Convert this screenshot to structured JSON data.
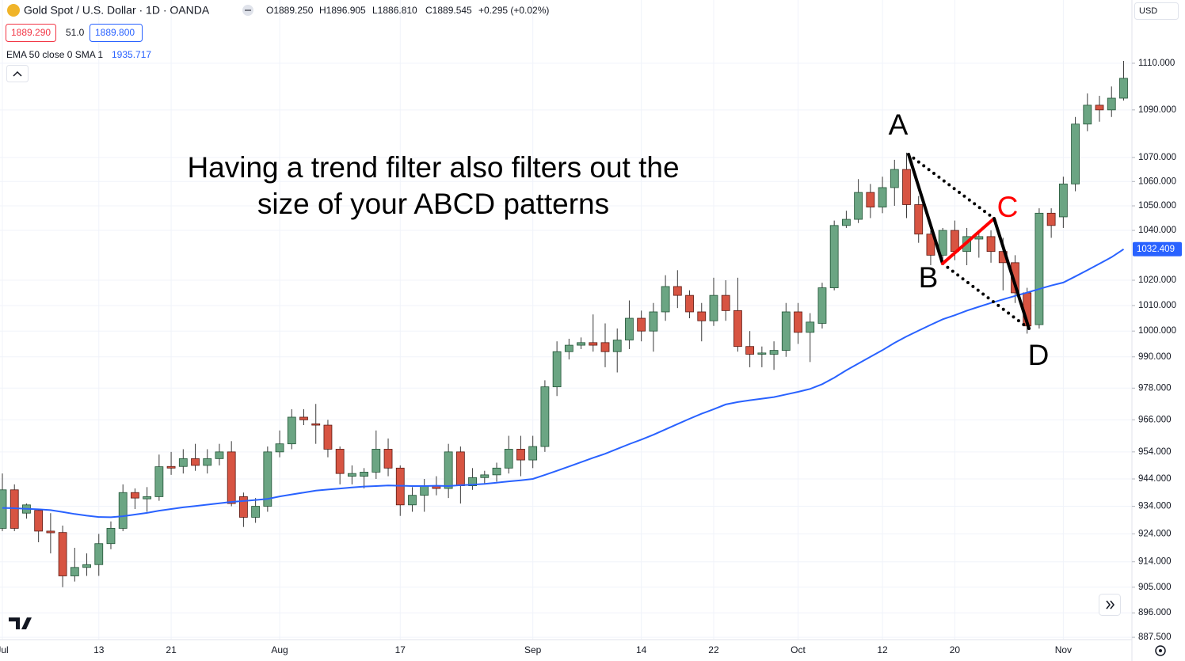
{
  "chart_data": {
    "type": "candlestick",
    "title": "Gold Spot / U.S. Dollar · 1D · OANDA",
    "header_values": [
      "O1889.250",
      "H1896.905",
      "L1886.810",
      "C1889.545",
      "+0.295 (+0.02%)"
    ],
    "quote": [
      "1889.290",
      "51.0",
      "1889.800"
    ],
    "indicator": "EMA 50 close 0 SMA 1",
    "indicator_value": "1935.717",
    "currency": "USD",
    "annotation_text": [
      "Having a trend filter also filters out the",
      "size of your ABCD patterns"
    ],
    "pattern_points": [
      "A",
      "B",
      "C",
      "D"
    ],
    "log_scale": true,
    "grid": true,
    "ylim": [
      886.7,
      1137.7
    ],
    "yticks": [
      {
        "value": 1110,
        "label": "1110.000"
      },
      {
        "value": 1090,
        "label": "1090.000"
      },
      {
        "value": 1070,
        "label": "1070.000"
      },
      {
        "value": 1060,
        "label": "1060.000"
      },
      {
        "value": 1050,
        "label": "1050.000"
      },
      {
        "value": 1040,
        "label": "1040.000"
      },
      {
        "value": 1020,
        "label": "1020.000"
      },
      {
        "value": 1010,
        "label": "1010.000"
      },
      {
        "value": 1000,
        "label": "1000.000"
      },
      {
        "value": 990,
        "label": "990.000"
      },
      {
        "value": 978,
        "label": "978.000"
      },
      {
        "value": 966,
        "label": "966.000"
      },
      {
        "value": 954,
        "label": "954.000"
      },
      {
        "value": 944,
        "label": "944.000"
      },
      {
        "value": 934,
        "label": "934.000"
      },
      {
        "value": 924,
        "label": "924.000"
      },
      {
        "value": 914,
        "label": "914.000"
      },
      {
        "value": 905,
        "label": "905.000"
      },
      {
        "value": 896,
        "label": "896.000"
      },
      {
        "value": 887.5,
        "label": "887.500"
      }
    ],
    "categories": [
      "Jul",
      null,
      null,
      null,
      null,
      null,
      null,
      null,
      "13",
      null,
      null,
      null,
      null,
      null,
      "21",
      null,
      null,
      null,
      null,
      null,
      null,
      null,
      null,
      "Aug",
      null,
      null,
      null,
      null,
      null,
      null,
      null,
      null,
      null,
      "17",
      null,
      null,
      null,
      null,
      null,
      null,
      null,
      null,
      null,
      null,
      "Sep",
      null,
      null,
      null,
      null,
      null,
      null,
      null,
      null,
      "14",
      null,
      null,
      null,
      null,
      null,
      "22",
      null,
      null,
      null,
      null,
      null,
      null,
      "Oct",
      null,
      null,
      null,
      null,
      null,
      null,
      "12",
      null,
      null,
      null,
      null,
      null,
      "20",
      null,
      null,
      null,
      null,
      null,
      null,
      null,
      null,
      "Nov",
      null,
      null,
      null,
      null,
      null
    ],
    "series": [
      {
        "up_color": "#6ba583",
        "down_color": "#d75442",
        "up_border": "#225437",
        "down_border": "#5b1a13",
        "wick_color": "#3a3a3a",
        "open": [
          926,
          940,
          931.5,
          932.5,
          925,
          924.5,
          909,
          912,
          913,
          920.5,
          926,
          939,
          936.7,
          937.5,
          948.6,
          948.6,
          951.5,
          949,
          951.5,
          954,
          937.5,
          930,
          934,
          954,
          957,
          967,
          964.5,
          964,
          955,
          945,
          945,
          946.5,
          955,
          948,
          934.5,
          938,
          941.5,
          940.5,
          954,
          941.5,
          944.5,
          945.5,
          948,
          955,
          951,
          956,
          978.5,
          992,
          994.5,
          995.5,
          995.5,
          992,
          996.5,
          1005,
          1000,
          1007.5,
          1017.5,
          1014,
          1007.5,
          1004,
          1014,
          1008,
          994,
          991,
          991,
          992.5,
          1007.5,
          999.5,
          1003,
          1017,
          1042,
          1044.5,
          1055.5,
          1049.5,
          1057.5,
          1065,
          1050.5,
          1038.5,
          1030,
          1040,
          1031.5,
          1036.5,
          1037.5,
          1031.5,
          1027,
          1015,
          1002.5,
          1047,
          1045.5,
          1059,
          1084,
          1092,
          1090,
          1095
        ],
        "high": [
          946,
          942,
          935,
          933,
          931.5,
          927,
          919,
          917,
          924,
          928.5,
          942,
          940.5,
          941,
          953,
          954,
          955,
          957,
          955,
          957,
          958,
          939,
          937,
          956,
          962,
          970,
          970,
          972,
          966,
          956,
          949,
          948,
          962,
          959,
          949,
          941,
          944,
          945,
          957,
          956,
          948,
          947,
          950,
          960,
          960,
          960,
          981,
          996,
          997,
          997.5,
          1006.5,
          1003,
          1001,
          1012,
          1008,
          1011,
          1022,
          1024,
          1016,
          1011,
          1021,
          1020,
          1021,
          1000,
          994,
          996,
          1011,
          1011,
          1007,
          1019,
          1044,
          1048,
          1061,
          1059,
          1062,
          1069,
          1072,
          1054,
          1040,
          1041,
          1044,
          1041,
          1040,
          1040,
          1037,
          1030,
          1017,
          1049,
          1049,
          1062,
          1087,
          1097,
          1096,
          1100,
          1111
        ],
        "low": [
          925,
          925,
          929.5,
          921,
          917,
          905,
          907,
          909,
          909,
          918.5,
          925,
          933,
          932,
          936,
          945.5,
          946,
          947,
          946,
          949,
          934,
          926.5,
          928,
          932,
          952,
          955,
          964,
          957,
          952,
          942,
          942,
          940.5,
          944,
          945,
          930.5,
          932,
          932,
          938,
          937,
          935,
          940,
          942,
          943,
          946,
          945,
          948,
          954,
          975,
          989,
          993,
          992,
          986,
          984,
          993,
          996,
          992,
          1004,
          1009,
          1005,
          996,
          1002,
          1004,
          992,
          986,
          986,
          985,
          990,
          995,
          988,
          1001,
          1016,
          1041,
          1043,
          1045,
          1047,
          1050,
          1045,
          1035,
          1026,
          1026,
          1028,
          1026,
          1029,
          1027,
          1016,
          1011,
          999,
          1001,
          1037,
          1041,
          1056,
          1081,
          1085,
          1087,
          1094
        ],
        "close": [
          940,
          926,
          934.5,
          925,
          924.4,
          909,
          912,
          913,
          920.5,
          926,
          939,
          937,
          937.5,
          948.5,
          948,
          951.5,
          949,
          951.5,
          954,
          935,
          930,
          934,
          954,
          957,
          967,
          966,
          964,
          955,
          946,
          946,
          946.5,
          955,
          948,
          934.5,
          938,
          941.5,
          940.5,
          954,
          941.5,
          944.5,
          945.5,
          948,
          955,
          951,
          956,
          978.5,
          992,
          994.5,
          995.5,
          994.5,
          992,
          996.5,
          1005,
          1000,
          1007.5,
          1017.5,
          1014,
          1007.5,
          1004,
          1014,
          1008,
          994,
          991,
          991.5,
          992.5,
          1007.5,
          999.5,
          1003.5,
          1017,
          1042,
          1044.5,
          1055.5,
          1049.5,
          1057.5,
          1065,
          1050.5,
          1038.5,
          1030,
          1040,
          1031.5,
          1037.5,
          1037.5,
          1031.5,
          1027,
          1015,
          1002,
          1047,
          1042,
          1059,
          1084,
          1092,
          1090,
          1095,
          1103.5
        ]
      },
      {
        "type": "line",
        "color": "#2962ff",
        "values": [
          933.4,
          933.3,
          933.1,
          932.9,
          932.6,
          931.9,
          931.2,
          930.6,
          930.1,
          930.0,
          930.4,
          931.0,
          931.6,
          932.4,
          933.0,
          933.6,
          934.1,
          934.6,
          935.1,
          935.6,
          935.9,
          936.3,
          936.7,
          937.6,
          938.3,
          939.0,
          939.7,
          940.1,
          940.5,
          940.9,
          941.2,
          941.4,
          941.6,
          941.5,
          941.4,
          941.4,
          941.5,
          941.4,
          941.7,
          941.9,
          942.2,
          942.6,
          943.1,
          943.5,
          944.0,
          945.5,
          947.0,
          948.6,
          950.2,
          951.8,
          953.3,
          955.1,
          956.9,
          958.6,
          960.4,
          962.4,
          964.4,
          966.4,
          968.3,
          970.0,
          971.8,
          972.7,
          973.4,
          974.0,
          974.6,
          975.6,
          976.6,
          977.7,
          979.5,
          982.0,
          984.8,
          987.4,
          990.0,
          992.6,
          995.4,
          997.9,
          1000.2,
          1002.4,
          1004.6,
          1006.2,
          1008.0,
          1009.5,
          1011.0,
          1012.4,
          1013.8,
          1015.1,
          1016.5,
          1017.9,
          1019.1,
          1021.5,
          1024.0,
          1026.6,
          1029.2,
          1032.409
        ]
      }
    ]
  }
}
